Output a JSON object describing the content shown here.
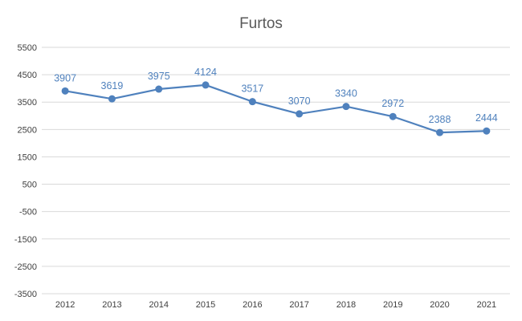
{
  "chart_data": {
    "type": "line",
    "title": "Furtos",
    "xlabel": "",
    "ylabel": "",
    "categories": [
      "2012",
      "2013",
      "2014",
      "2015",
      "2016",
      "2017",
      "2018",
      "2019",
      "2020",
      "2021"
    ],
    "series": [
      {
        "values": [
          3907,
          3619,
          3975,
          4124,
          3517,
          3070,
          3340,
          2972,
          2388,
          2444
        ]
      }
    ],
    "ylim": [
      -3500,
      5500
    ],
    "yticks": [
      "5500",
      "4500",
      "3500",
      "2500",
      "1500",
      "500",
      "-500",
      "-1500",
      "-2500",
      "-3500"
    ],
    "grid": true,
    "legend": "none",
    "line_color": "#4f81bd",
    "label_color": "#4f81bd"
  }
}
